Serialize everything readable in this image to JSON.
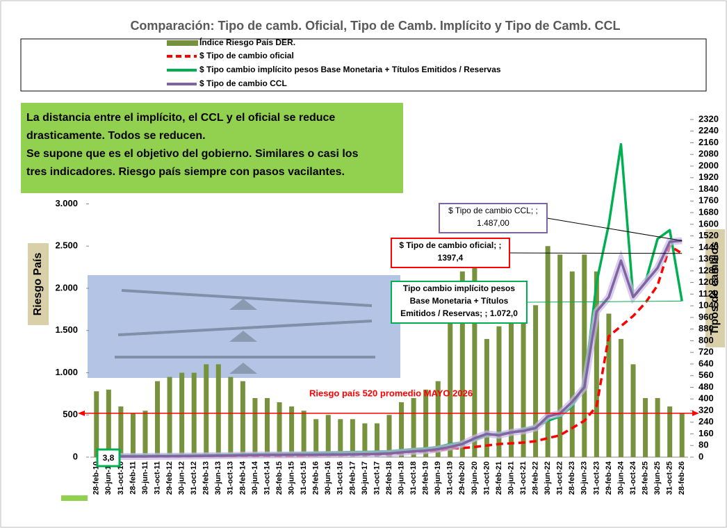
{
  "chart_data": {
    "type": "combo",
    "title": "Comparación: Tipo de camb. Oficial, Tipo de Camb. Implícito y Tipo de Camb. CCL",
    "ylabel": "Riesgo País",
    "y2label": "Tipos de cambios",
    "categories": [
      "28-feb-10",
      "30-jun-10",
      "31-oct-10",
      "28-feb-11",
      "30-jun-11",
      "31-oct-11",
      "29-feb-12",
      "30-jun-12",
      "31-oct-12",
      "28-feb-13",
      "30-jun-13",
      "31-oct-13",
      "28-feb-14",
      "30-jun-14",
      "31-oct-14",
      "28-feb-15",
      "30-jun-15",
      "31-oct-15",
      "29-feb-16",
      "30-jun-16",
      "31-oct-16",
      "28-feb-17",
      "30-jun-17",
      "31-oct-17",
      "28-feb-18",
      "30-jun-18",
      "31-oct-18",
      "28-feb-19",
      "30-jun-19",
      "31-oct-19",
      "29-feb-20",
      "30-jun-20",
      "31-oct-20",
      "28-feb-21",
      "30-jun-21",
      "31-oct-21",
      "28-feb-22",
      "30-jun-22",
      "31-oct-22",
      "28-feb-23",
      "30-jun-23",
      "31-oct-23",
      "29-feb-24",
      "30-jun-24",
      "31-oct-24",
      "28-feb-25",
      "30-jun-25",
      "31-oct-25",
      "28-feb-26"
    ],
    "series": [
      {
        "name": "Índice Riesgo País DER.",
        "color": "#76923c",
        "kind": "bar",
        "values": [
          780,
          800,
          600,
          520,
          550,
          900,
          950,
          1000,
          1000,
          1100,
          1100,
          950,
          900,
          700,
          700,
          650,
          600,
          550,
          450,
          500,
          450,
          450,
          400,
          400,
          500,
          650,
          700,
          800,
          900,
          2000,
          2200,
          2400,
          1400,
          1550,
          1600,
          1700,
          1800,
          2500,
          2400,
          2200,
          2400,
          2200,
          1700,
          1400,
          1100,
          700,
          700,
          600,
          520
        ]
      },
      {
        "name": "$ Tipo de cambio oficial",
        "color": "#ff0000",
        "kind": "dash",
        "axis": "y2",
        "values": [
          4,
          4,
          4,
          4,
          5,
          5,
          5,
          5,
          6,
          6,
          6,
          7,
          8,
          8,
          9,
          9,
          9,
          10,
          14,
          15,
          15,
          16,
          17,
          18,
          20,
          28,
          37,
          40,
          45,
          60,
          62,
          70,
          80,
          90,
          95,
          100,
          110,
          130,
          150,
          200,
          250,
          350,
          830,
          900,
          970,
          1060,
          1180,
          1450,
          1400
        ]
      },
      {
        "name": "$ Tipo cambio implícito pesos Base Monetaria + Títulos Emitidos / Reservas",
        "color": "#00b050",
        "kind": "line",
        "axis": "y2",
        "values": [
          10,
          10,
          11,
          11,
          12,
          12,
          13,
          14,
          15,
          16,
          17,
          18,
          20,
          21,
          22,
          24,
          25,
          27,
          30,
          32,
          33,
          35,
          36,
          38,
          40,
          48,
          55,
          60,
          70,
          90,
          100,
          120,
          150,
          160,
          170,
          190,
          210,
          250,
          280,
          350,
          500,
          1200,
          1600,
          2150,
          1100,
          1200,
          1500,
          1560,
          1072
        ]
      },
      {
        "name": "$ Tipo de cambio CCL",
        "color": "#8064a2",
        "kind": "glow",
        "axis": "y2",
        "values": [
          5,
          5,
          5,
          5,
          5,
          6,
          6,
          7,
          8,
          9,
          10,
          11,
          13,
          14,
          15,
          15,
          16,
          16,
          17,
          18,
          18,
          19,
          20,
          22,
          25,
          33,
          40,
          45,
          55,
          70,
          90,
          130,
          160,
          150,
          170,
          180,
          200,
          280,
          300,
          380,
          480,
          1000,
          1100,
          1350,
          1100,
          1200,
          1300,
          1480,
          1487
        ]
      }
    ],
    "ylim": [
      0,
      4000
    ],
    "yticks": [
      0,
      500,
      {
        "value": 1000,
        "label": "1.000"
      },
      {
        "value": 1500,
        "label": "1.500"
      },
      {
        "value": 2000,
        "label": "2.000"
      },
      {
        "value": 2500,
        "label": "2.500"
      },
      {
        "value": 3000,
        "label": "3.000"
      }
    ],
    "y2lim": [
      0,
      2320
    ],
    "y2ticks": [
      0,
      80,
      160,
      240,
      320,
      400,
      480,
      560,
      640,
      720,
      800,
      880,
      960,
      1040,
      1120,
      1200,
      1280,
      1360,
      1440,
      1520,
      1600,
      1680,
      1760,
      1840,
      1920,
      2000,
      2080,
      2160,
      2240,
      2320
    ],
    "hline": 520,
    "annotations": {
      "note": [
        "La distancia entre el implícito, el CCL y el oficial se reduce",
        "drasticamente. Todos se reducen.",
        "Se supone que es el objetivo del gobierno. Similares o casi los",
        "tres indicadores. Riesgo país siempre con pasos vacilantes."
      ],
      "hline_label": "Riesgo país 520 promedio  MAYO 2026",
      "first_label": "3,8",
      "ccl": [
        "$ Tipo de cambio CCL; ;",
        "1.487,00"
      ],
      "oficial": [
        "$ Tipo de cambio oficial; ;",
        "1397,4"
      ],
      "implicito": [
        "Tipo cambio implícito pesos",
        "Base Monetaria + Títulos",
        "Emitidos / Reservas; ;  1.072,0"
      ]
    }
  }
}
